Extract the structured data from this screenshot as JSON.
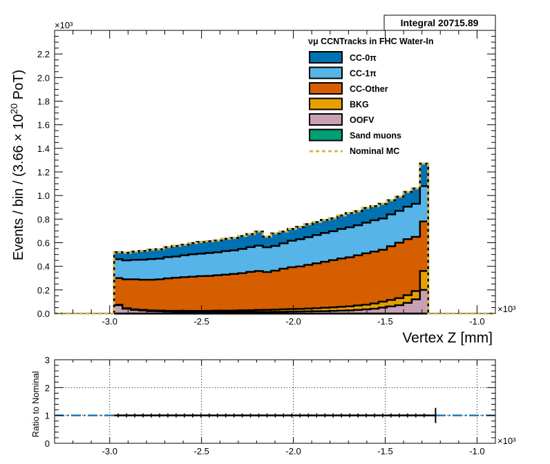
{
  "chart_data": [
    {
      "type": "area",
      "title": "",
      "xlabel": "Vertex Z [mm]",
      "x_multiplier": "×10³",
      "y_multiplier": "×10³",
      "ylabel_parts": {
        "a": "Events / bin / (3.66",
        "b": "× 10",
        "sup": "20",
        "c": "PoT)"
      },
      "xlim": [
        -3.3,
        -0.9
      ],
      "ylim": [
        0,
        2.4
      ],
      "x_ticks": [
        -3.0,
        -2.5,
        -2.0,
        -1.5,
        -1.0
      ],
      "x_tick_labels": [
        "-3.0",
        "-2.5",
        "-2.0",
        "-1.5",
        "-1.0"
      ],
      "y_ticks": [
        0,
        0.2,
        0.4,
        0.6,
        0.8,
        1.0,
        1.2,
        1.4,
        1.6,
        1.8,
        2.0,
        2.2
      ],
      "y_tick_labels": [
        "0.0",
        "0.2",
        "0.4",
        "0.6",
        "0.8",
        "1.0",
        "1.2",
        "1.4",
        "1.6",
        "1.8",
        "2.0",
        "2.2"
      ],
      "integral_label": "Integral 20715.89",
      "legend_title": "νμ CCNTracks in FHC Water-In",
      "legend_position": "top-right",
      "bin_edges": [
        -2.9758,
        -2.9308,
        -2.8858,
        -2.8408,
        -2.7958,
        -2.7508,
        -2.7058,
        -2.6608,
        -2.6158,
        -2.5708,
        -2.5258,
        -2.4808,
        -2.4358,
        -2.3908,
        -2.3458,
        -2.3008,
        -2.2558,
        -2.2108,
        -2.1658,
        -2.1208,
        -2.0758,
        -2.0308,
        -1.9858,
        -1.9408,
        -1.8958,
        -1.8508,
        -1.8058,
        -1.7608,
        -1.7158,
        -1.6708,
        -1.6258,
        -1.5808,
        -1.5358,
        -1.4908,
        -1.4458,
        -1.4008,
        -1.3558,
        -1.3108,
        -1.2658
      ],
      "series": [
        {
          "name": "OOFV",
          "color": "#c8a0b4",
          "values": [
            0.07,
            0.04,
            0.03,
            0.025,
            0.02,
            0.018,
            0.016,
            0.015,
            0.014,
            0.013,
            0.012,
            0.012,
            0.012,
            0.012,
            0.012,
            0.013,
            0.013,
            0.014,
            0.014,
            0.015,
            0.015,
            0.016,
            0.017,
            0.018,
            0.019,
            0.02,
            0.022,
            0.024,
            0.026,
            0.03,
            0.035,
            0.04,
            0.05,
            0.06,
            0.07,
            0.09,
            0.12,
            0.2
          ]
        },
        {
          "name": "BKG",
          "color": "#e69f00",
          "values": [
            0.005,
            0.005,
            0.005,
            0.006,
            0.006,
            0.007,
            0.007,
            0.008,
            0.009,
            0.009,
            0.01,
            0.011,
            0.012,
            0.012,
            0.013,
            0.014,
            0.015,
            0.016,
            0.017,
            0.018,
            0.02,
            0.021,
            0.022,
            0.024,
            0.026,
            0.028,
            0.03,
            0.032,
            0.035,
            0.038,
            0.04,
            0.045,
            0.05,
            0.055,
            0.06,
            0.065,
            0.07,
            0.16
          ]
        },
        {
          "name": "CC-Other",
          "color": "#d55e00",
          "values": [
            0.225,
            0.245,
            0.255,
            0.255,
            0.26,
            0.265,
            0.275,
            0.28,
            0.285,
            0.29,
            0.295,
            0.295,
            0.3,
            0.305,
            0.31,
            0.315,
            0.325,
            0.33,
            0.32,
            0.33,
            0.345,
            0.355,
            0.36,
            0.37,
            0.38,
            0.39,
            0.4,
            0.41,
            0.415,
            0.425,
            0.435,
            0.44,
            0.44,
            0.455,
            0.47,
            0.475,
            0.46,
            0.42
          ]
        },
        {
          "name": "CC-1π",
          "color": "#56b4e9",
          "values": [
            0.16,
            0.16,
            0.165,
            0.17,
            0.175,
            0.175,
            0.18,
            0.18,
            0.185,
            0.19,
            0.19,
            0.195,
            0.195,
            0.2,
            0.2,
            0.205,
            0.21,
            0.215,
            0.21,
            0.21,
            0.215,
            0.225,
            0.23,
            0.235,
            0.24,
            0.245,
            0.245,
            0.25,
            0.255,
            0.255,
            0.26,
            0.265,
            0.265,
            0.27,
            0.27,
            0.275,
            0.28,
            0.3
          ]
        },
        {
          "name": "CC-0π",
          "color": "#0072b2",
          "values": [
            0.06,
            0.065,
            0.07,
            0.075,
            0.08,
            0.08,
            0.085,
            0.09,
            0.09,
            0.095,
            0.1,
            0.1,
            0.1,
            0.105,
            0.105,
            0.11,
            0.11,
            0.12,
            0.09,
            0.105,
            0.1,
            0.1,
            0.105,
            0.11,
            0.11,
            0.11,
            0.11,
            0.115,
            0.12,
            0.12,
            0.125,
            0.12,
            0.125,
            0.12,
            0.12,
            0.125,
            0.13,
            0.19
          ]
        },
        {
          "name": "Sand muons",
          "color": "#009e73",
          "values": [
            0,
            0,
            0,
            0,
            0,
            0,
            0,
            0,
            0,
            0,
            0,
            0,
            0,
            0,
            0,
            0,
            0,
            0,
            0,
            0,
            0,
            0,
            0,
            0,
            0,
            0,
            0,
            0,
            0,
            0,
            0,
            0,
            0,
            0,
            0,
            0,
            0,
            0
          ]
        }
      ],
      "legend_entries": [
        {
          "label": "CC-0π",
          "color": "#0072b2"
        },
        {
          "label": "CC-1π",
          "color": "#56b4e9"
        },
        {
          "label": "CC-Other",
          "color": "#d55e00"
        },
        {
          "label": "BKG",
          "color": "#e69f00"
        },
        {
          "label": "OOFV",
          "color": "#c8a0b4"
        },
        {
          "label": "Sand muons",
          "color": "#009e73"
        },
        {
          "label": "Nominal MC",
          "color": "#d4b84a",
          "style": "dashed"
        }
      ]
    },
    {
      "type": "line",
      "ylabel": "Ratio to Nominal",
      "x_multiplier": "×10³",
      "xlim": [
        -3.3,
        -0.9
      ],
      "ylim": [
        0,
        3
      ],
      "x_ticks": [
        -3.0,
        -2.5,
        -2.0,
        -1.5,
        -1.0
      ],
      "x_tick_labels": [
        "-3.0",
        "-2.5",
        "-2.0",
        "-1.5",
        "-1.0"
      ],
      "y_ticks": [
        0,
        1,
        2,
        3
      ],
      "y_tick_labels": [
        "0",
        "1",
        "2",
        "3"
      ],
      "grid": true,
      "reference_line": {
        "y": 1,
        "color": "#1f78b4",
        "style": "dash-dot"
      },
      "ratio": {
        "x_range": [
          -2.9758,
          -1.2658
        ],
        "y": 1,
        "endpoint_x": -1.2258
      }
    }
  ]
}
